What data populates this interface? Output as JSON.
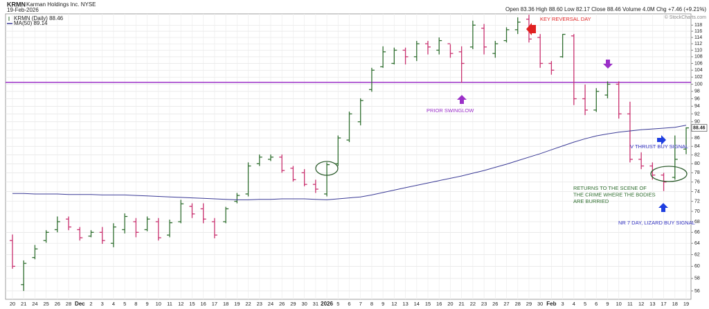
{
  "chart_data": {
    "type": "ohlc",
    "ticker": "KRMN",
    "title": "Karman Holdings Inc.  NYSE",
    "date": "19-Feb-2026",
    "quote": "Open 83.36  High 88.60  Low 82.17  Close 88.46  Volume 4.0M  Chg +7.46 (+9.21%)",
    "credit": "© StockCharts.com",
    "price_name": "KRMN (Daily) 88.46",
    "up_color": "#2f6e2f",
    "down_color": "#c8306e",
    "log_scale": true,
    "grid": true,
    "categories": [
      "20",
      "21",
      "24",
      "25",
      "26",
      "28",
      "Dec",
      "2",
      "3",
      "4",
      "5",
      "8",
      "9",
      "10",
      "11",
      "12",
      "15",
      "16",
      "17",
      "18",
      "19",
      "22",
      "23",
      "24",
      "26",
      "29",
      "30",
      "31",
      "2026",
      "5",
      "6",
      "7",
      "8",
      "9",
      "12",
      "13",
      "14",
      "15",
      "16",
      "20",
      "21",
      "22",
      "23",
      "26",
      "27",
      "28",
      "29",
      "30",
      "Feb",
      "3",
      "4",
      "5",
      "6",
      "9",
      "10",
      "11",
      "12",
      "13",
      "17",
      "18",
      "19"
    ],
    "open": [
      64.5,
      57,
      61.5,
      64.5,
      66.5,
      68.5,
      66.5,
      65.3,
      66,
      64,
      66.5,
      68,
      66.5,
      68,
      65.5,
      68,
      71,
      70.5,
      68,
      68,
      72,
      73.5,
      80,
      81,
      81.5,
      79,
      78,
      75.5,
      73.5,
      80,
      85.5,
      90,
      98.5,
      105,
      106,
      110,
      108,
      112,
      110,
      112,
      109.5,
      111,
      117,
      109,
      113,
      116.5,
      120,
      114,
      106,
      108,
      114.5,
      96,
      93,
      97,
      100,
      92,
      81,
      79.5,
      77.5,
      77,
      83.36
    ],
    "high": [
      65.6,
      61,
      63.7,
      66.4,
      69,
      69,
      67,
      66.4,
      67,
      67.7,
      69.6,
      68.7,
      69,
      68.7,
      68.4,
      72.3,
      71.6,
      71.6,
      68.7,
      70.9,
      73.7,
      80.3,
      82.1,
      82.1,
      82.1,
      79.5,
      78.8,
      76.5,
      80.3,
      86.6,
      92.6,
      96.1,
      104.7,
      111.2,
      110.8,
      110.8,
      112.9,
      112.9,
      114,
      111.8,
      111.2,
      119.5,
      118.4,
      112.9,
      117.3,
      120.6,
      121.5,
      115.1,
      106.7,
      115.1,
      115.1,
      99.9,
      98.9,
      100.8,
      100.8,
      95.2,
      82.6,
      80.3,
      78,
      86.6,
      88.6
    ],
    "low": [
      59.6,
      56,
      61.2,
      64.1,
      66,
      66.4,
      64.5,
      65.1,
      63.9,
      63.3,
      65.8,
      65.1,
      66.2,
      64.5,
      65.1,
      67.7,
      68.7,
      67.7,
      64.9,
      67.7,
      71.6,
      73,
      79.5,
      80.6,
      78,
      76.1,
      75.1,
      73.7,
      73,
      79.5,
      85,
      89.1,
      97.9,
      104.7,
      105.7,
      105.7,
      106.7,
      108.7,
      108.7,
      107.7,
      100.4,
      110.3,
      108.7,
      107.7,
      112.4,
      115.1,
      112.4,
      104.7,
      102.7,
      107.7,
      94.3,
      91.7,
      92.5,
      96.1,
      90.8,
      80.3,
      78.8,
      76.5,
      74.1,
      76.5,
      82.17
    ],
    "close": [
      60,
      60.5,
      63,
      66,
      68,
      67,
      65,
      66,
      64.5,
      67,
      69,
      66,
      68.5,
      65,
      67.8,
      71.5,
      69.5,
      68.5,
      65.5,
      70.5,
      73.2,
      79.5,
      81.5,
      81.5,
      78.5,
      76.5,
      75.5,
      74.5,
      79.8,
      86,
      92,
      95.5,
      104,
      109.5,
      110,
      108,
      112,
      111,
      113,
      109,
      106,
      118,
      111,
      112,
      116.5,
      119,
      113.5,
      106,
      104,
      115,
      96,
      93,
      98,
      100,
      92,
      81,
      79.5,
      77.5,
      76,
      81.0,
      88.46
    ],
    "ma": {
      "name": "MA(50) 89.14",
      "color": "#3a3a96",
      "values": [
        73.6,
        73.6,
        73.5,
        73.5,
        73.5,
        73.4,
        73.4,
        73.4,
        73.3,
        73.3,
        73.3,
        73.2,
        73.1,
        73.0,
        72.9,
        72.8,
        72.7,
        72.6,
        72.5,
        72.4,
        72.3,
        72.3,
        72.4,
        72.4,
        72.5,
        72.5,
        72.5,
        72.4,
        72.3,
        72.5,
        72.7,
        72.9,
        73.3,
        73.8,
        74.3,
        74.8,
        75.3,
        75.8,
        76.3,
        76.8,
        77.3,
        77.9,
        78.5,
        79.2,
        79.9,
        80.7,
        81.5,
        82.3,
        83.2,
        84.1,
        85.0,
        85.8,
        86.5,
        87.0,
        87.4,
        87.7,
        88.0,
        88.2,
        88.4,
        88.6,
        89.14
      ]
    },
    "hline": {
      "value": 100.5,
      "color": "#9b30c8"
    },
    "ylim": [
      54.7,
      121.8
    ],
    "yticks": [
      56,
      58,
      60,
      62,
      64,
      66,
      68,
      70,
      72,
      74,
      76,
      78,
      80,
      82,
      84,
      86,
      88,
      90,
      92,
      94,
      96,
      98,
      100,
      102,
      104,
      106,
      108,
      110,
      112,
      114,
      116,
      118
    ],
    "annotations": [
      {
        "lines": [
          "KEY REVERSAL DAY"
        ],
        "color": "#e02828"
      },
      {
        "lines": [
          "PRIOR SWINGLOW"
        ],
        "color": "#9b30c8"
      },
      {
        "lines": [
          "V THRUST BUY SIGNAL"
        ],
        "color": "#3030c0"
      },
      {
        "lines": [
          "RETURNS TO THE SCENE OF",
          "THE CRIME WHERE THE BODIES",
          "ARE BURRIED"
        ],
        "color": "#2f6e2f"
      },
      {
        "lines": [
          "NR 7 DAY, LIZARD BUY SIGNAL"
        ],
        "color": "#3030c0"
      }
    ]
  }
}
